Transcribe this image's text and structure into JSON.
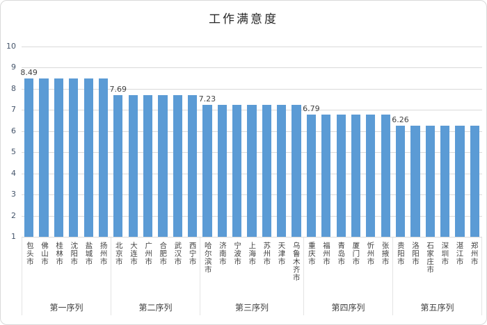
{
  "colors": {
    "bar": "#5B9BD5",
    "grid": "#D9D9D9",
    "axis_text": "#44546A",
    "label_text": "#404040",
    "border": "#D9D9D9"
  },
  "chart_data": {
    "type": "bar",
    "title": "工作满意度",
    "xlabel": "",
    "ylabel": "",
    "ylim": [
      1,
      10
    ],
    "yticks": [
      1,
      2,
      3,
      4,
      5,
      6,
      7,
      8,
      9,
      10
    ],
    "grid": true,
    "legend": "none",
    "bar_color": "#5B9BD5",
    "groups": [
      {
        "label": "第一序列",
        "value": 8.49,
        "value_label": "8.49",
        "cities": [
          "包头市",
          "佛山市",
          "桂林市",
          "沈阳市",
          "盐城市",
          "扬州市"
        ]
      },
      {
        "label": "第二序列",
        "value": 7.69,
        "value_label": "7.69",
        "cities": [
          "北京市",
          "大连市",
          "广州市",
          "合肥市",
          "武汉市",
          "西宁市"
        ]
      },
      {
        "label": "第三序列",
        "value": 7.23,
        "value_label": "7.23",
        "cities": [
          "哈尔滨市",
          "济南市",
          "宁波市",
          "上海市",
          "苏州市",
          "天津市",
          "乌鲁木齐市"
        ]
      },
      {
        "label": "第四序列",
        "value": 6.79,
        "value_label": "6.79",
        "cities": [
          "重庆市",
          "福州市",
          "青岛市",
          "厦门市",
          "忻州市",
          "张掖市"
        ]
      },
      {
        "label": "第五序列",
        "value": 6.26,
        "value_label": "6.26",
        "cities": [
          "贵阳市",
          "洛阳市",
          "石家庄市",
          "深圳市",
          "湛江市",
          "郑州市"
        ]
      }
    ]
  }
}
